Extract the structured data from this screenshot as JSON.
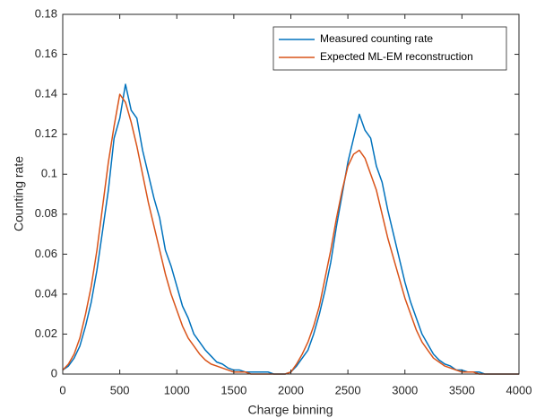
{
  "chart_data": {
    "type": "line",
    "xlabel": "Charge binning",
    "ylabel": "Counting rate",
    "x": [
      0,
      50,
      100,
      150,
      200,
      250,
      300,
      350,
      400,
      450,
      500,
      550,
      600,
      650,
      700,
      750,
      800,
      850,
      900,
      950,
      1000,
      1050,
      1100,
      1150,
      1200,
      1250,
      1300,
      1350,
      1400,
      1450,
      1500,
      1550,
      1600,
      1650,
      1700,
      1750,
      1800,
      1850,
      1900,
      1950,
      2000,
      2050,
      2100,
      2150,
      2200,
      2250,
      2300,
      2350,
      2400,
      2450,
      2500,
      2550,
      2600,
      2650,
      2700,
      2750,
      2800,
      2850,
      2900,
      2950,
      3000,
      3050,
      3100,
      3150,
      3200,
      3250,
      3300,
      3350,
      3400,
      3450,
      3500,
      3550,
      3600,
      3650,
      3700,
      3750,
      3800,
      3850,
      3900,
      3950,
      4000
    ],
    "series": [
      {
        "name": "Measured counting rate",
        "color": "#0072bd",
        "values": [
          0.002,
          0.004,
          0.008,
          0.014,
          0.024,
          0.036,
          0.052,
          0.072,
          0.092,
          0.118,
          0.128,
          0.145,
          0.132,
          0.128,
          0.112,
          0.1,
          0.088,
          0.078,
          0.062,
          0.054,
          0.044,
          0.034,
          0.028,
          0.02,
          0.016,
          0.012,
          0.009,
          0.006,
          0.005,
          0.003,
          0.002,
          0.002,
          0.001,
          0.001,
          0.001,
          0.001,
          0.001,
          0,
          0,
          0,
          0.001,
          0.004,
          0.008,
          0.012,
          0.02,
          0.03,
          0.042,
          0.056,
          0.074,
          0.09,
          0.106,
          0.118,
          0.13,
          0.122,
          0.118,
          0.104,
          0.096,
          0.082,
          0.07,
          0.058,
          0.046,
          0.036,
          0.028,
          0.02,
          0.015,
          0.01,
          0.007,
          0.005,
          0.004,
          0.002,
          0.002,
          0.001,
          0.001,
          0.001,
          0,
          0,
          0,
          0,
          0,
          0,
          0
        ]
      },
      {
        "name": "Expected ML-EM reconstruction",
        "color": "#d95319",
        "values": [
          0.002,
          0.005,
          0.01,
          0.018,
          0.03,
          0.044,
          0.062,
          0.084,
          0.106,
          0.124,
          0.14,
          0.136,
          0.126,
          0.114,
          0.1,
          0.086,
          0.074,
          0.062,
          0.05,
          0.04,
          0.032,
          0.024,
          0.018,
          0.014,
          0.01,
          0.007,
          0.005,
          0.004,
          0.003,
          0.002,
          0.001,
          0.001,
          0.001,
          0,
          0,
          0,
          0,
          0,
          0,
          0,
          0.001,
          0.005,
          0.01,
          0.016,
          0.024,
          0.034,
          0.048,
          0.062,
          0.078,
          0.092,
          0.104,
          0.11,
          0.112,
          0.108,
          0.1,
          0.092,
          0.08,
          0.068,
          0.058,
          0.048,
          0.038,
          0.03,
          0.022,
          0.016,
          0.012,
          0.008,
          0.006,
          0.004,
          0.003,
          0.002,
          0.001,
          0.001,
          0.001,
          0,
          0,
          0,
          0,
          0,
          0,
          0,
          0
        ]
      }
    ],
    "xlim": [
      0,
      4000
    ],
    "xticks": [
      0,
      500,
      1000,
      1500,
      2000,
      2500,
      3000,
      3500,
      4000
    ],
    "ylim": [
      0,
      0.18
    ],
    "yticks": [
      0,
      0.02,
      0.04,
      0.06,
      0.08,
      0.1,
      0.12,
      0.14,
      0.16,
      0.18
    ],
    "legend": "northeast"
  }
}
